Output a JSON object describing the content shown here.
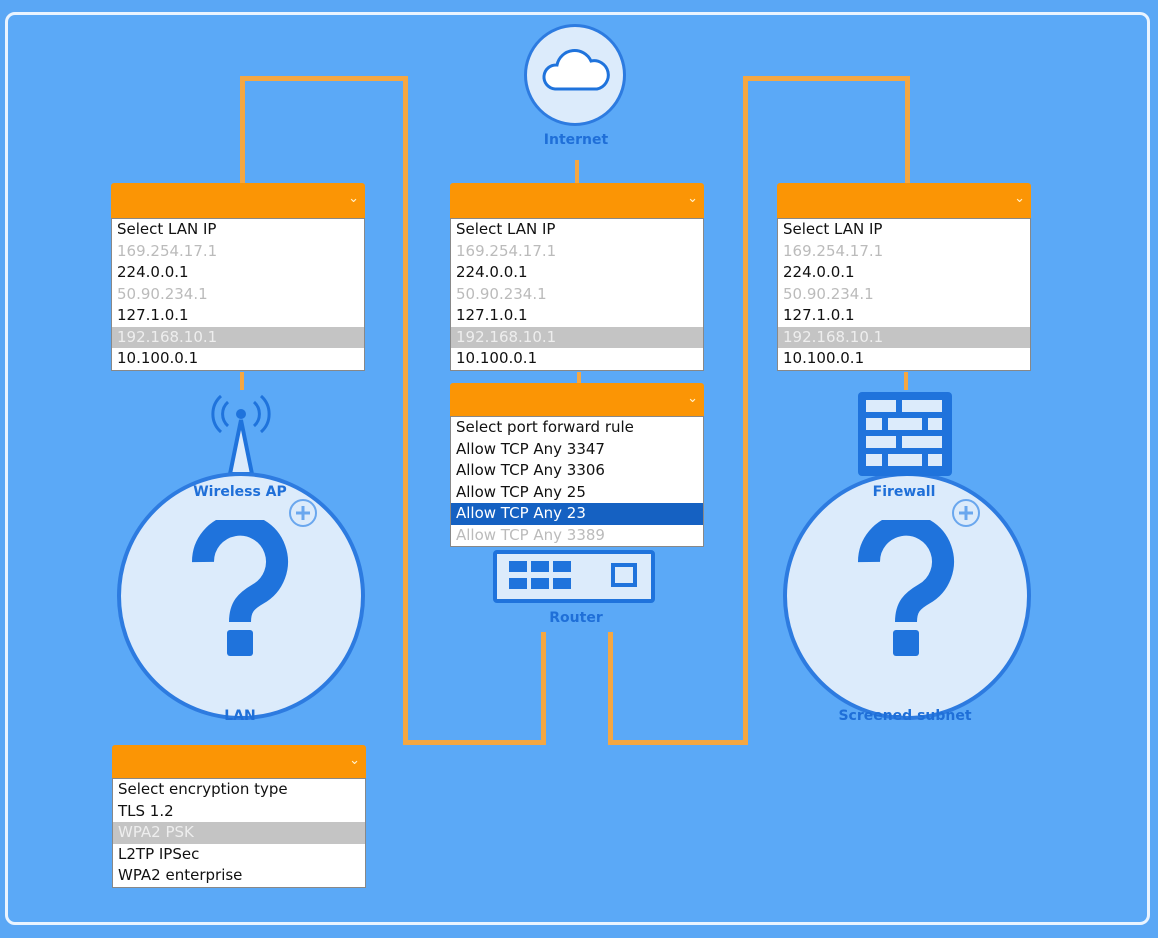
{
  "colors": {
    "background": "#5ba9f7",
    "dropdown_header": "#fb9505",
    "connector": "#f5a742",
    "icon_blue": "#1f73dc",
    "selected_blue": "#1561c2"
  },
  "nodes": {
    "internet": "Internet",
    "wireless_ap": "Wireless AP",
    "router": "Router",
    "firewall": "Firewall",
    "lan": "LAN",
    "screened_subnet": "Screened subnet"
  },
  "lan_ip_options": [
    "Select LAN IP",
    "169.254.17.1",
    "224.0.0.1",
    "50.90.234.1",
    "127.1.0.1",
    "192.168.10.1",
    "10.100.0.1"
  ],
  "port_forward_options": [
    "Select port forward rule",
    "Allow TCP Any 3347",
    "Allow TCP Any 3306",
    "Allow TCP Any 25",
    "Allow TCP Any 23",
    "Allow TCP Any 3389"
  ],
  "port_forward_selected": "Allow TCP Any 23",
  "encryption_options": [
    "Select encryption type",
    "TLS 1.2",
    "WPA2 PSK",
    "L2TP IPSec",
    "WPA2 enterprise"
  ],
  "icons": {
    "dropdown": "chevron-down-icon",
    "internet": "cloud-icon",
    "ap": "wireless-antenna-icon",
    "firewall": "brick-wall-icon",
    "router": "router-icon",
    "add": "plus-circle-icon",
    "unknown": "question-mark-icon"
  }
}
